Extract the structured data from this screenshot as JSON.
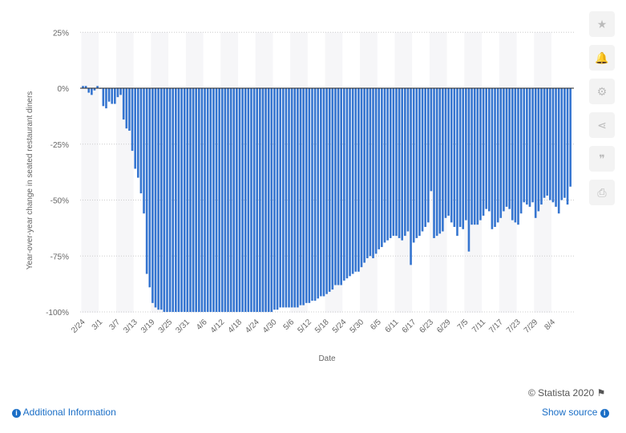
{
  "chart_data": {
    "type": "bar",
    "title": "",
    "xlabel": "Date",
    "ylabel": "Year-over-year change in seated restaurant diners",
    "ylim": [
      -100,
      25
    ],
    "yticks": [
      "25%",
      "0%",
      "-25%",
      "-50%",
      "-75%",
      "-100%"
    ],
    "ytick_values": [
      25,
      0,
      -25,
      -50,
      -75,
      -100
    ],
    "grid": true,
    "color": "#3575d0",
    "tick_labels": [
      "2/24",
      "3/1",
      "3/7",
      "3/13",
      "3/19",
      "3/25",
      "3/31",
      "4/6",
      "4/12",
      "4/18",
      "4/24",
      "4/30",
      "5/6",
      "5/12",
      "5/18",
      "5/24",
      "5/30",
      "6/5",
      "6/11",
      "6/17",
      "6/23",
      "6/29",
      "7/5",
      "7/11",
      "7/17",
      "7/23",
      "7/29",
      "8/4"
    ],
    "categories": [
      "2/24",
      "2/25",
      "2/26",
      "2/27",
      "2/28",
      "2/29",
      "3/1",
      "3/2",
      "3/3",
      "3/4",
      "3/5",
      "3/6",
      "3/7",
      "3/8",
      "3/9",
      "3/10",
      "3/11",
      "3/12",
      "3/13",
      "3/14",
      "3/15",
      "3/16",
      "3/17",
      "3/18",
      "3/19",
      "3/20",
      "3/21",
      "3/22",
      "3/23",
      "3/24",
      "3/25",
      "3/26",
      "3/27",
      "3/28",
      "3/29",
      "3/30",
      "3/31",
      "4/1",
      "4/2",
      "4/3",
      "4/4",
      "4/5",
      "4/6",
      "4/7",
      "4/8",
      "4/9",
      "4/10",
      "4/11",
      "4/12",
      "4/13",
      "4/14",
      "4/15",
      "4/16",
      "4/17",
      "4/18",
      "4/19",
      "4/20",
      "4/21",
      "4/22",
      "4/23",
      "4/24",
      "4/25",
      "4/26",
      "4/27",
      "4/28",
      "4/29",
      "4/30",
      "5/1",
      "5/2",
      "5/3",
      "5/4",
      "5/5",
      "5/6",
      "5/7",
      "5/8",
      "5/9",
      "5/10",
      "5/11",
      "5/12",
      "5/13",
      "5/14",
      "5/15",
      "5/16",
      "5/17",
      "5/18",
      "5/19",
      "5/20",
      "5/21",
      "5/22",
      "5/23",
      "5/24",
      "5/25",
      "5/26",
      "5/27",
      "5/28",
      "5/29",
      "5/30",
      "5/31",
      "6/1",
      "6/2",
      "6/3",
      "6/4",
      "6/5",
      "6/6",
      "6/7",
      "6/8",
      "6/9",
      "6/10",
      "6/11",
      "6/12",
      "6/13",
      "6/14",
      "6/15",
      "6/16",
      "6/17",
      "6/18",
      "6/19",
      "6/20",
      "6/21",
      "6/22",
      "6/23",
      "6/24",
      "6/25",
      "6/26",
      "6/27",
      "6/28",
      "6/29",
      "6/30",
      "7/1",
      "7/2",
      "7/3",
      "7/4",
      "7/5",
      "7/6",
      "7/7",
      "7/8",
      "7/9",
      "7/10",
      "7/11",
      "7/12",
      "7/13",
      "7/14",
      "7/15",
      "7/16",
      "7/17",
      "7/18",
      "7/19",
      "7/20",
      "7/21",
      "7/22",
      "7/23",
      "7/24",
      "7/25",
      "7/26",
      "7/27",
      "7/28",
      "7/29",
      "7/30",
      "7/31",
      "8/1",
      "8/2",
      "8/3",
      "8/4",
      "8/5",
      "8/6",
      "8/7",
      "8/8",
      "8/9",
      "8/10"
    ],
    "values": [
      1,
      1,
      -2,
      -3,
      -1,
      1,
      0,
      -8,
      -9,
      -6,
      -7,
      -7,
      -4,
      -3,
      -14,
      -18,
      -19,
      -28,
      -36,
      -40,
      -47,
      -56,
      -83,
      -89,
      -96,
      -98,
      -99,
      -99,
      -100,
      -100,
      -100,
      -100,
      -100,
      -100,
      -100,
      -100,
      -100,
      -100,
      -100,
      -100,
      -100,
      -100,
      -100,
      -100,
      -100,
      -100,
      -100,
      -100,
      -100,
      -100,
      -100,
      -100,
      -100,
      -100,
      -100,
      -100,
      -100,
      -100,
      -100,
      -100,
      -100,
      -100,
      -100,
      -100,
      -100,
      -100,
      -99,
      -99,
      -98,
      -98,
      -98,
      -98,
      -98,
      -98,
      -98,
      -97,
      -97,
      -96,
      -96,
      -95,
      -95,
      -94,
      -93,
      -93,
      -92,
      -91,
      -90,
      -88,
      -88,
      -88,
      -86,
      -85,
      -84,
      -83,
      -82,
      -82,
      -80,
      -78,
      -76,
      -75,
      -76,
      -74,
      -72,
      -71,
      -69,
      -68,
      -67,
      -66,
      -66,
      -67,
      -68,
      -66,
      -64,
      -79,
      -69,
      -67,
      -66,
      -64,
      -62,
      -60,
      -46,
      -67,
      -66,
      -65,
      -64,
      -58,
      -57,
      -60,
      -62,
      -66,
      -62,
      -63,
      -59,
      -73,
      -61,
      -61,
      -61,
      -59,
      -57,
      -54,
      -55,
      -63,
      -62,
      -60,
      -58,
      -55,
      -53,
      -54,
      -59,
      -60,
      -61,
      -56,
      -51,
      -52,
      -53,
      -51,
      -58,
      -55,
      -52,
      -49,
      -48,
      -50,
      -51,
      -53,
      -56,
      -50,
      -49,
      -52,
      -44
    ]
  },
  "sidebar": {
    "icons": [
      "star-icon",
      "bell-icon",
      "gear-icon",
      "share-icon",
      "quote-icon",
      "print-icon"
    ],
    "glyphs": [
      "★",
      "🔔",
      "⚙",
      "⋖",
      "❞",
      "⎙"
    ]
  },
  "footer": {
    "copyright": "© Statista 2020",
    "flag": "⚑",
    "additional_info": "Additional Information",
    "show_source": "Show source",
    "info_glyph": "i"
  }
}
